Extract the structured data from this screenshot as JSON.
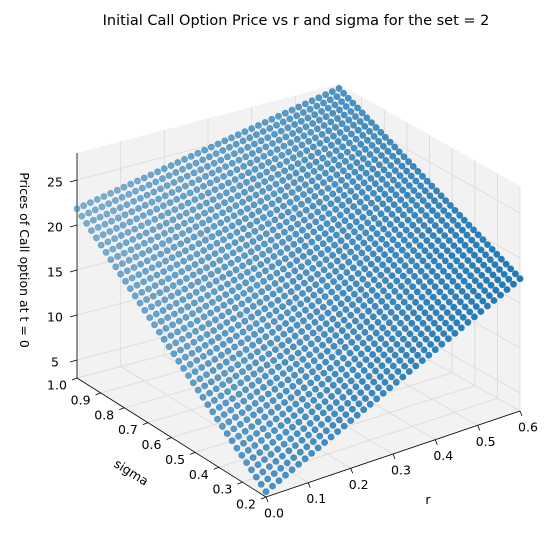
{
  "chart_data": {
    "type": "scatter3d",
    "title": "Initial Call Option Price vs r and sigma for the set = 2",
    "x_label": "r",
    "y_label": "sigma",
    "z_label": "Prices of Call option at t = 0",
    "x_range": [
      0.0,
      0.6
    ],
    "y_range": [
      0.2,
      1.0
    ],
    "z_range": [
      3.0,
      28.0
    ],
    "x_ticks": [
      "0.0",
      "0.1",
      "0.2",
      "0.3",
      "0.4",
      "0.5",
      "0.6"
    ],
    "y_ticks": [
      "0.2",
      "0.3",
      "0.4",
      "0.5",
      "0.6",
      "0.7",
      "0.8",
      "0.9",
      "1.0"
    ],
    "z_ticks": [
      "5",
      "10",
      "15",
      "20",
      "25"
    ],
    "grid_points_per_axis": 40,
    "surface_corners": [
      {
        "r": 0.0,
        "sigma": 0.2,
        "price": 3.6
      },
      {
        "r": 0.0,
        "sigma": 1.0,
        "price": 21.8
      },
      {
        "r": 0.6,
        "sigma": 0.2,
        "price": 17.7
      },
      {
        "r": 0.6,
        "sigma": 1.0,
        "price": 27.5
      }
    ],
    "marker_color": "#1f77b4",
    "grid": true,
    "pane_color": "#f2f2f2",
    "grid_color": "#d9d9d9"
  }
}
